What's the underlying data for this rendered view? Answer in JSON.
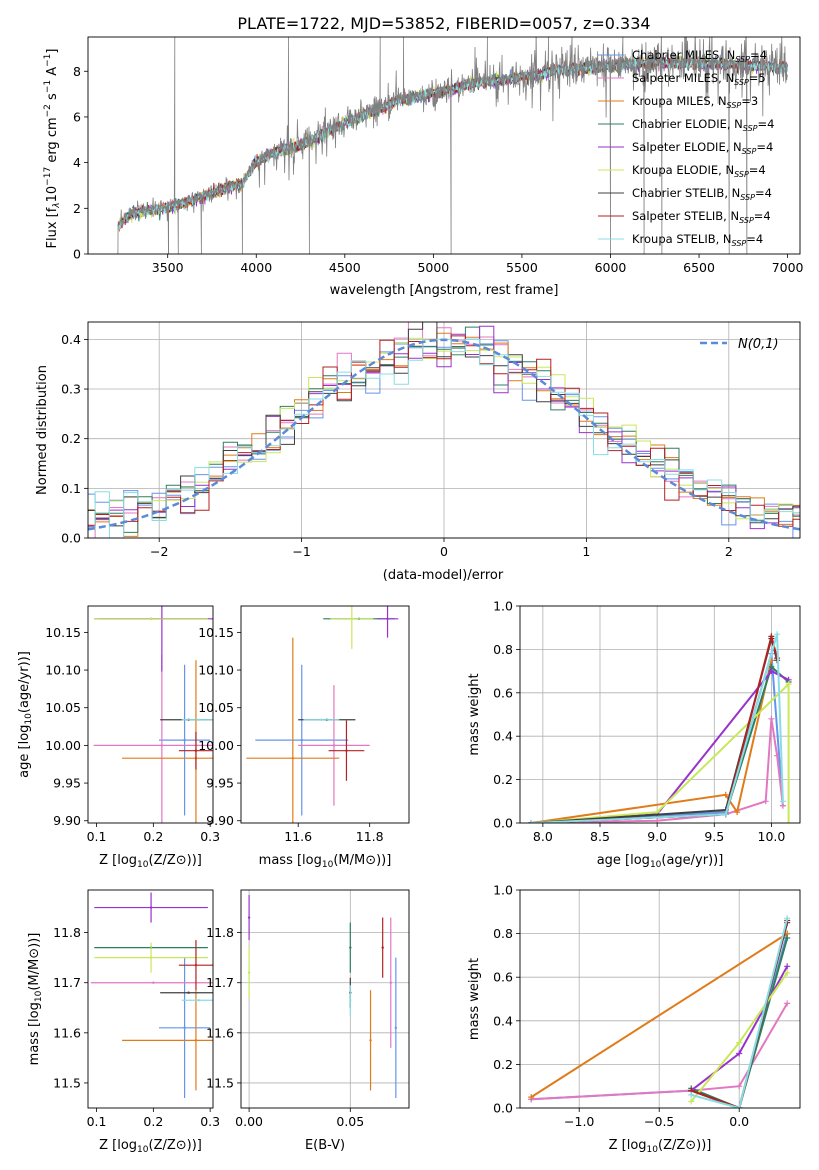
{
  "title": "PLATE=1722, MJD=53852, FIBERID=0057, z=0.334",
  "colors": {
    "chabrier_miles": "#6495ed",
    "salpeter_miles": "#e377c2",
    "kroupa_miles": "#e07b1a",
    "chabrier_elodie": "#2f7f5f",
    "salpeter_elodie": "#9932cc",
    "kroupa_elodie": "#c8e85a",
    "chabrier_stelib": "#404040",
    "salpeter_stelib": "#b22222",
    "kroupa_stelib": "#88dde4",
    "normal": "#5b8ad8",
    "data": "#808080"
  },
  "chart_data": [
    {
      "id": "spectrum",
      "type": "line",
      "title": "PLATE=1722, MJD=53852, FIBERID=0057, z=0.334",
      "xlabel": "wavelength [Angstrom, rest frame]",
      "ylabel_parts": [
        "Flux [f",
        "λ",
        "10",
        "−17",
        " erg cm",
        "−2",
        " s",
        "−1",
        " A",
        "−1",
        "]"
      ],
      "xlim": [
        3050,
        7070
      ],
      "ylim": [
        0,
        9.5
      ],
      "xticks": [
        3500,
        4000,
        4500,
        5000,
        5500,
        6000,
        6500,
        7000
      ],
      "yticks": [
        0,
        2,
        4,
        6,
        8
      ],
      "data_range": [
        3220,
        7000
      ],
      "continuum": [
        [
          3220,
          1.3
        ],
        [
          3300,
          1.85
        ],
        [
          3450,
          2.0
        ],
        [
          3600,
          2.3
        ],
        [
          3700,
          2.6
        ],
        [
          3850,
          3.0
        ],
        [
          3920,
          3.1
        ],
        [
          4000,
          4.1
        ],
        [
          4100,
          4.5
        ],
        [
          4200,
          4.7
        ],
        [
          4300,
          4.95
        ],
        [
          4400,
          5.4
        ],
        [
          4500,
          5.8
        ],
        [
          4600,
          6.1
        ],
        [
          4700,
          6.4
        ],
        [
          4800,
          6.8
        ],
        [
          4900,
          6.9
        ],
        [
          5000,
          7.1
        ],
        [
          5100,
          7.2
        ],
        [
          5200,
          7.5
        ],
        [
          5300,
          7.6
        ],
        [
          5400,
          7.65
        ],
        [
          5500,
          7.8
        ],
        [
          5600,
          7.9
        ],
        [
          5700,
          8.1
        ],
        [
          5800,
          8.15
        ],
        [
          5900,
          8.2
        ],
        [
          6000,
          8.3
        ],
        [
          6100,
          8.35
        ],
        [
          6200,
          8.4
        ],
        [
          6400,
          8.4
        ],
        [
          6600,
          8.35
        ],
        [
          6800,
          8.3
        ],
        [
          7000,
          8.2
        ]
      ],
      "spikes": [
        [
          3505,
          -1
        ],
        [
          3540,
          9.5
        ],
        [
          3560,
          0
        ],
        [
          3690,
          0
        ],
        [
          3922,
          0
        ],
        [
          4182,
          9.5
        ],
        [
          4300,
          0
        ],
        [
          4700,
          9.5
        ],
        [
          4832,
          9.5
        ],
        [
          5100,
          0
        ],
        [
          5305,
          9.5
        ],
        [
          5650,
          9.5
        ],
        [
          6000,
          0
        ],
        [
          6070,
          9.5
        ],
        [
          6190,
          0
        ],
        [
          6290,
          0
        ],
        [
          6560,
          9.5
        ],
        [
          6670,
          0
        ],
        [
          6770,
          -1
        ]
      ],
      "legend": [
        {
          "name": "Chabrier MILES, N",
          "sub": "SSP",
          "tail": "=4",
          "color_key": "chabrier_miles"
        },
        {
          "name": "Salpeter MILES, N",
          "sub": "SSP",
          "tail": "=5",
          "color_key": "salpeter_miles"
        },
        {
          "name": "Kroupa MILES, N",
          "sub": "SSP",
          "tail": "=3",
          "color_key": "kroupa_miles"
        },
        {
          "name": "Chabrier ELODIE, N",
          "sub": "SSP",
          "tail": "=4",
          "color_key": "chabrier_elodie"
        },
        {
          "name": "Salpeter ELODIE, N",
          "sub": "SSP",
          "tail": "=4",
          "color_key": "salpeter_elodie"
        },
        {
          "name": "Kroupa ELODIE, N",
          "sub": "SSP",
          "tail": "=4",
          "color_key": "kroupa_elodie"
        },
        {
          "name": "Chabrier STELIB, N",
          "sub": "SSP",
          "tail": "=4",
          "color_key": "chabrier_stelib"
        },
        {
          "name": "Salpeter STELIB, N",
          "sub": "SSP",
          "tail": "=4",
          "color_key": "salpeter_stelib"
        },
        {
          "name": "Kroupa STELIB, N",
          "sub": "SSP",
          "tail": "=4",
          "color_key": "kroupa_stelib"
        }
      ]
    },
    {
      "id": "residuals",
      "type": "line",
      "xlabel": "(data-model)/error",
      "ylabel": "Normed distribution",
      "xlim": [
        -2.5,
        2.5
      ],
      "ylim": [
        0,
        0.435
      ],
      "xticks": [
        -2,
        -1,
        0,
        1,
        2
      ],
      "yticks": [
        0.0,
        0.1,
        0.2,
        0.3,
        0.4
      ],
      "grid": true,
      "legend": "N(0,1)",
      "legend_position": "top-right",
      "bin_width": 0.1
    },
    {
      "id": "age_vs_Z",
      "type": "scatter",
      "xlabel": "Z [log10(Z/Z⊙)]",
      "ylabel": "age  [log10(age/yr)]",
      "xlim": [
        0.085,
        0.305
      ],
      "ylim": [
        9.897,
        10.185
      ],
      "xticks": [
        0.1,
        0.2,
        0.3
      ],
      "yticks": [
        9.9,
        9.95,
        10.0,
        10.05,
        10.1,
        10.15
      ],
      "points": [
        {
          "c": "chabrier_miles",
          "x": 0.255,
          "y": 10.007,
          "xe": 0.045,
          "ye": 0.1
        },
        {
          "c": "salpeter_miles",
          "x": 0.215,
          "y": 10.0,
          "xe": 0.12,
          "ye": 0.12
        },
        {
          "c": "kroupa_miles",
          "x": 0.275,
          "y": 9.983,
          "xe": 0.13,
          "ye": 0.13
        },
        {
          "c": "chabrier_elodie",
          "x": 0.196,
          "y": 10.168,
          "xe": 0.1,
          "ye": 0.0
        },
        {
          "c": "salpeter_elodie",
          "x": 0.215,
          "y": 10.168,
          "xe": 0.11,
          "ye": 0.07
        },
        {
          "c": "kroupa_elodie",
          "x": 0.196,
          "y": 10.168,
          "xe": 0.1,
          "ye": 0.0
        },
        {
          "c": "chabrier_stelib",
          "x": 0.262,
          "y": 10.034,
          "xe": 0.05,
          "ye": 0.0
        },
        {
          "c": "salpeter_stelib",
          "x": 0.275,
          "y": 9.993,
          "xe": 0.03,
          "ye": 0.025
        },
        {
          "c": "kroupa_stelib",
          "x": 0.28,
          "y": 10.034,
          "xe": 0.03,
          "ye": 0.0
        }
      ]
    },
    {
      "id": "age_vs_mass",
      "type": "scatter",
      "xlabel": "mass [log10(M/M⊙)]",
      "ylabel": "",
      "xlim": [
        11.44,
        11.91
      ],
      "ylim": [
        9.897,
        10.185
      ],
      "xticks": [
        11.6,
        11.8
      ],
      "yticks": [
        9.9,
        9.95,
        10.0,
        10.05,
        10.1,
        10.15
      ],
      "points": [
        {
          "c": "chabrier_miles",
          "x": 11.61,
          "y": 10.007,
          "xe": 0.13,
          "ye": 0.1
        },
        {
          "c": "salpeter_miles",
          "x": 11.7,
          "y": 10.0,
          "xe": 0.1,
          "ye": 0.08
        },
        {
          "c": "kroupa_miles",
          "x": 11.585,
          "y": 9.983,
          "xe": 0.13,
          "ye": 0.16
        },
        {
          "c": "chabrier_elodie",
          "x": 11.77,
          "y": 10.168,
          "xe": 0.1,
          "ye": 0.0
        },
        {
          "c": "salpeter_elodie",
          "x": 11.85,
          "y": 10.168,
          "xe": 0.03,
          "ye": 0.025
        },
        {
          "c": "kroupa_elodie",
          "x": 11.75,
          "y": 10.168,
          "xe": 0.06,
          "ye": 0.04
        },
        {
          "c": "chabrier_stelib",
          "x": 11.68,
          "y": 10.034,
          "xe": 0.08,
          "ye": 0.0
        },
        {
          "c": "salpeter_stelib",
          "x": 11.735,
          "y": 9.993,
          "xe": 0.05,
          "ye": 0.04
        },
        {
          "c": "kroupa_stelib",
          "x": 11.665,
          "y": 10.034,
          "xe": 0.05,
          "ye": 0.0
        }
      ]
    },
    {
      "id": "weight_vs_age",
      "type": "line",
      "xlabel": "age  [log10(age/yr)]",
      "ylabel": "mass weight",
      "xlim": [
        7.8,
        10.25
      ],
      "ylim": [
        0,
        1.0
      ],
      "xticks": [
        8.0,
        8.5,
        9.0,
        9.5,
        10.0
      ],
      "yticks": [
        0.0,
        0.2,
        0.4,
        0.6,
        0.8,
        1.0
      ],
      "grid": true,
      "series": [
        {
          "c": "chabrier_miles",
          "pts": [
            [
              7.9,
              0.0
            ],
            [
              9.6,
              0.05
            ],
            [
              10.0,
              0.78
            ],
            [
              10.1,
              0.08
            ]
          ]
        },
        {
          "c": "salpeter_miles",
          "pts": [
            [
              7.9,
              0.0
            ],
            [
              9.0,
              0.01
            ],
            [
              9.6,
              0.04
            ],
            [
              9.95,
              0.1
            ],
            [
              10.0,
              0.48
            ],
            [
              10.05,
              0.31
            ],
            [
              10.1,
              0.08
            ]
          ]
        },
        {
          "c": "kroupa_miles",
          "pts": [
            [
              7.9,
              0.0
            ],
            [
              9.6,
              0.13
            ],
            [
              9.7,
              0.05
            ],
            [
              10.0,
              0.75
            ]
          ]
        },
        {
          "c": "chabrier_elodie",
          "pts": [
            [
              7.9,
              0.0
            ],
            [
              9.6,
              0.04
            ],
            [
              10.0,
              0.72
            ],
            [
              10.15,
              0.65
            ]
          ]
        },
        {
          "c": "salpeter_elodie",
          "pts": [
            [
              7.9,
              0.0
            ],
            [
              9.0,
              0.04
            ],
            [
              10.0,
              0.7
            ],
            [
              10.15,
              0.66
            ]
          ]
        },
        {
          "c": "kroupa_elodie",
          "pts": [
            [
              7.9,
              0.0
            ],
            [
              9.0,
              0.05
            ],
            [
              10.15,
              0.64
            ],
            [
              10.15,
              0.0
            ]
          ]
        },
        {
          "c": "chabrier_stelib",
          "pts": [
            [
              7.9,
              0.0
            ],
            [
              9.6,
              0.06
            ],
            [
              10.0,
              0.85
            ],
            [
              10.05,
              0.75
            ]
          ]
        },
        {
          "c": "salpeter_stelib",
          "pts": [
            [
              7.9,
              0.0
            ],
            [
              9.6,
              0.04
            ],
            [
              10.0,
              0.86
            ],
            [
              10.05,
              0.76
            ]
          ]
        },
        {
          "c": "kroupa_stelib",
          "pts": [
            [
              7.9,
              0.0
            ],
            [
              9.6,
              0.04
            ],
            [
              10.05,
              0.87
            ],
            [
              10.1,
              0.1
            ]
          ]
        }
      ]
    },
    {
      "id": "mass_vs_Z",
      "type": "scatter",
      "xlabel": "Z [log10(Z/Z⊙)]",
      "ylabel": "mass [log10(M/M⊙)]",
      "xlim": [
        0.085,
        0.305
      ],
      "ylim": [
        11.45,
        11.885
      ],
      "xticks": [
        0.1,
        0.2,
        0.3
      ],
      "yticks": [
        11.5,
        11.6,
        11.7,
        11.8
      ],
      "points": [
        {
          "c": "chabrier_miles",
          "x": 0.255,
          "y": 11.61,
          "xe": 0.045,
          "ye": 0.14
        },
        {
          "c": "salpeter_miles",
          "x": 0.2,
          "y": 11.7,
          "xe": 0.11,
          "ye": 0.0
        },
        {
          "c": "kroupa_miles",
          "x": 0.275,
          "y": 11.585,
          "xe": 0.13,
          "ye": 0.1
        },
        {
          "c": "chabrier_elodie",
          "x": 0.196,
          "y": 11.77,
          "xe": 0.1,
          "ye": 0.0
        },
        {
          "c": "salpeter_elodie",
          "x": 0.196,
          "y": 11.85,
          "xe": 0.1,
          "ye": 0.03
        },
        {
          "c": "kroupa_elodie",
          "x": 0.196,
          "y": 11.75,
          "xe": 0.1,
          "ye": 0.03
        },
        {
          "c": "chabrier_stelib",
          "x": 0.262,
          "y": 11.68,
          "xe": 0.05,
          "ye": 0.0
        },
        {
          "c": "salpeter_stelib",
          "x": 0.275,
          "y": 11.735,
          "xe": 0.03,
          "ye": 0.05
        },
        {
          "c": "kroupa_stelib",
          "x": 0.28,
          "y": 11.665,
          "xe": 0.03,
          "ye": 0.0
        }
      ]
    },
    {
      "id": "mass_vs_ebv",
      "type": "scatter",
      "xlabel": "E(B-V)",
      "ylabel": "",
      "xlim": [
        -0.004,
        0.079
      ],
      "ylim": [
        11.45,
        11.885
      ],
      "xticks": [
        0.0,
        0.05
      ],
      "yticks": [
        11.5,
        11.6,
        11.7,
        11.8
      ],
      "grid": true,
      "points": [
        {
          "c": "chabrier_miles",
          "x": 0.0725,
          "y": 11.61,
          "ye": 0.14
        },
        {
          "c": "salpeter_miles",
          "x": 0.07,
          "y": 11.7,
          "ye": 0.13
        },
        {
          "c": "kroupa_miles",
          "x": 0.06,
          "y": 11.585,
          "ye": 0.1
        },
        {
          "c": "chabrier_elodie",
          "x": 0.05,
          "y": 11.77,
          "ye": 0.05
        },
        {
          "c": "salpeter_elodie",
          "x": 0.0,
          "y": 11.83,
          "ye": 0.045
        },
        {
          "c": "kroupa_elodie",
          "x": 0.0,
          "y": 11.72,
          "ye": 0.05
        },
        {
          "c": "chabrier_stelib",
          "x": 0.05,
          "y": 11.68,
          "ye": 0.03
        },
        {
          "c": "salpeter_stelib",
          "x": 0.066,
          "y": 11.77,
          "ye": 0.06
        },
        {
          "c": "kroupa_stelib",
          "x": 0.05,
          "y": 11.665,
          "ye": 0.03
        }
      ]
    },
    {
      "id": "weight_vs_Z",
      "type": "line",
      "xlabel": "Z [log10(Z/Z⊙)]",
      "ylabel": "mass weight",
      "xlim": [
        -1.37,
        0.38
      ],
      "ylim": [
        0,
        1.0
      ],
      "xticks": [
        -1.0,
        -0.5,
        0.0
      ],
      "yticks": [
        0.0,
        0.2,
        0.4,
        0.6,
        0.8,
        1.0
      ],
      "grid": true,
      "series": [
        {
          "c": "chabrier_miles",
          "pts": [
            [
              -1.3,
              0.04
            ],
            [
              -0.3,
              0.08
            ],
            [
              0.0,
              0.0
            ],
            [
              0.3,
              0.8
            ]
          ]
        },
        {
          "c": "salpeter_miles",
          "pts": [
            [
              -1.3,
              0.04
            ],
            [
              -0.3,
              0.08
            ],
            [
              0.0,
              0.1
            ],
            [
              0.3,
              0.48
            ]
          ]
        },
        {
          "c": "kroupa_miles",
          "pts": [
            [
              -1.3,
              0.05
            ],
            [
              0.3,
              0.8
            ]
          ]
        },
        {
          "c": "chabrier_elodie",
          "pts": [
            [
              -0.3,
              0.09
            ],
            [
              0.0,
              0.0
            ],
            [
              0.3,
              0.78
            ]
          ]
        },
        {
          "c": "salpeter_elodie",
          "pts": [
            [
              -0.3,
              0.08
            ],
            [
              0.0,
              0.25
            ],
            [
              0.3,
              0.65
            ]
          ]
        },
        {
          "c": "kroupa_elodie",
          "pts": [
            [
              -0.3,
              0.03
            ],
            [
              0.0,
              0.3
            ],
            [
              0.3,
              0.62
            ]
          ]
        },
        {
          "c": "chabrier_stelib",
          "pts": [
            [
              -0.3,
              0.08
            ],
            [
              0.0,
              0.0
            ],
            [
              0.3,
              0.85
            ]
          ]
        },
        {
          "c": "salpeter_stelib",
          "pts": [
            [
              -0.3,
              0.08
            ],
            [
              0.0,
              0.0
            ],
            [
              0.3,
              0.86
            ]
          ]
        },
        {
          "c": "kroupa_stelib",
          "pts": [
            [
              -0.3,
              0.06
            ],
            [
              0.0,
              0.0
            ],
            [
              0.3,
              0.87
            ]
          ]
        }
      ]
    }
  ]
}
